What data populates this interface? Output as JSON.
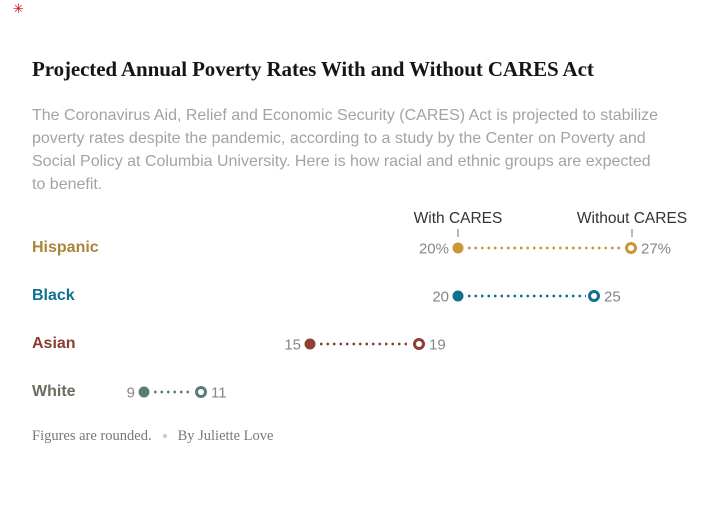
{
  "badge": {
    "glyph": "✳",
    "color": "#d0021b"
  },
  "header": {
    "title": "Projected Annual Poverty Rates With and Without CARES Act",
    "intro_lines": [
      "The Coronavirus Aid, Relief and Economic Security (CARES) Act is projected to stabilize",
      "poverty rates despite the pandemic, according to a study by the Center on Poverty and",
      "Social Policy at Columbia University. Here is how racial and ethnic groups are expected",
      "to benefit."
    ]
  },
  "chart_data": {
    "type": "scatter",
    "subtype": "dumbbell-dot-plot",
    "title": "Projected Annual Poverty Rates With and Without CARES Act",
    "unit": "percent",
    "column_labels": {
      "with_cares": "With CARES",
      "without_cares": "Without CARES"
    },
    "legend_position": "top",
    "grid": false,
    "marker_legend": {
      "filled_dot": "With CARES",
      "open_dot": "Without CARES"
    },
    "categories": [
      "Hispanic",
      "Black",
      "Asian",
      "White"
    ],
    "series": [
      {
        "name": "With CARES",
        "values": [
          20,
          20,
          15,
          9
        ]
      },
      {
        "name": "Without CARES",
        "values": [
          27,
          25,
          19,
          11
        ]
      }
    ],
    "rows": [
      {
        "group": "Hispanic",
        "with_cares": 20,
        "without_cares": 27,
        "with_label": "20%",
        "without_label": "27%",
        "label_color": "#aa8439",
        "dot_color": "#c89734"
      },
      {
        "group": "Black",
        "with_cares": 20,
        "without_cares": 25,
        "with_label": "20",
        "without_label": "25",
        "label_color": "#10708f",
        "dot_color": "#10708f"
      },
      {
        "group": "Asian",
        "with_cares": 15,
        "without_cares": 19,
        "with_label": "15",
        "without_label": "19",
        "label_color": "#8b3c2f",
        "dot_color": "#8b4136"
      },
      {
        "group": "White",
        "with_cares": 9,
        "without_cares": 11,
        "with_label": "9",
        "without_label": "11",
        "label_color": "#6d6d5e",
        "dot_color": "#5c7a77"
      }
    ],
    "geometry": {
      "label_x": 32,
      "with_label_center_x": 458,
      "without_label_center_x": 632,
      "rows": [
        {
          "y": 248,
          "x_with": 458,
          "x_without": 631
        },
        {
          "y": 296,
          "x_with": 458,
          "x_without": 594
        },
        {
          "y": 344,
          "x_with": 310,
          "x_without": 419
        },
        {
          "y": 392,
          "x_with": 144,
          "x_without": 201
        }
      ]
    },
    "value_label_color": "#868686"
  },
  "footer": {
    "note": "Figures are rounded.",
    "byline": "By Juliette Love"
  }
}
